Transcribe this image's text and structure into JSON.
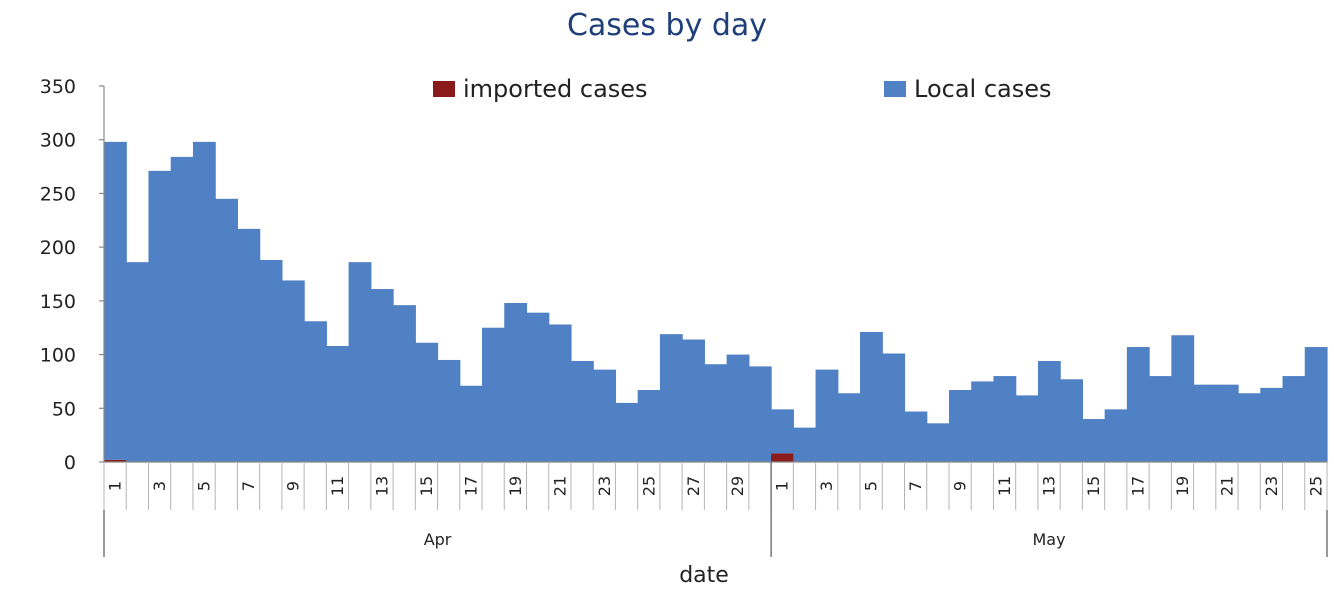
{
  "chart_data": {
    "type": "bar",
    "stacked": true,
    "title": "Cases by day",
    "xlabel": "date",
    "ylabel": "",
    "ylim": [
      0,
      350
    ],
    "yticks": [
      0,
      50,
      100,
      150,
      200,
      250,
      300,
      350
    ],
    "grid": false,
    "legend_position": "top",
    "groups": [
      {
        "label": "Apr",
        "days": [
          1,
          2,
          3,
          4,
          5,
          6,
          7,
          8,
          9,
          10,
          11,
          12,
          13,
          14,
          15,
          16,
          17,
          18,
          19,
          20,
          21,
          22,
          23,
          24,
          25,
          26,
          27,
          28,
          29,
          30
        ]
      },
      {
        "label": "May",
        "days": [
          1,
          2,
          3,
          4,
          5,
          6,
          7,
          8,
          9,
          10,
          11,
          12,
          13,
          14,
          15,
          16,
          17,
          18,
          19,
          20,
          21,
          22,
          23,
          24,
          25
        ]
      }
    ],
    "tick_labels_apr": [
      "1",
      "",
      "3",
      "",
      "5",
      "",
      "7",
      "",
      "9",
      "",
      "11",
      "",
      "13",
      "",
      "15",
      "",
      "17",
      "",
      "19",
      "",
      "21",
      "",
      "23",
      "",
      "25",
      "",
      "27",
      "",
      "29",
      ""
    ],
    "tick_labels_may": [
      "1",
      "",
      "3",
      "",
      "5",
      "",
      "7",
      "",
      "9",
      "",
      "11",
      "",
      "13",
      "",
      "15",
      "",
      "17",
      "",
      "19",
      "",
      "21",
      "",
      "23",
      "",
      "25"
    ],
    "series": [
      {
        "name": "imported cases",
        "color": "#8B1A1A",
        "values": [
          2,
          0,
          0,
          0,
          0,
          0,
          0,
          0,
          0,
          0,
          0,
          0,
          0,
          0,
          0,
          0,
          0,
          0,
          0,
          0,
          0,
          0,
          0,
          0,
          0,
          0,
          0,
          0,
          0,
          0,
          8,
          0,
          0,
          0,
          0,
          0,
          0,
          0,
          0,
          0,
          0,
          0,
          0,
          0,
          0,
          0,
          0,
          0,
          0,
          0,
          0,
          0,
          0,
          0,
          0
        ]
      },
      {
        "name": "Local cases",
        "color": "#4F81C4",
        "values": [
          296,
          186,
          271,
          284,
          298,
          245,
          217,
          188,
          169,
          131,
          108,
          186,
          161,
          146,
          111,
          95,
          71,
          125,
          148,
          139,
          128,
          94,
          86,
          55,
          67,
          119,
          114,
          91,
          100,
          89,
          41,
          32,
          86,
          64,
          121,
          101,
          47,
          36,
          67,
          75,
          80,
          62,
          94,
          77,
          40,
          49,
          107,
          80,
          118,
          72,
          72,
          64,
          69,
          80,
          107
        ]
      }
    ]
  }
}
